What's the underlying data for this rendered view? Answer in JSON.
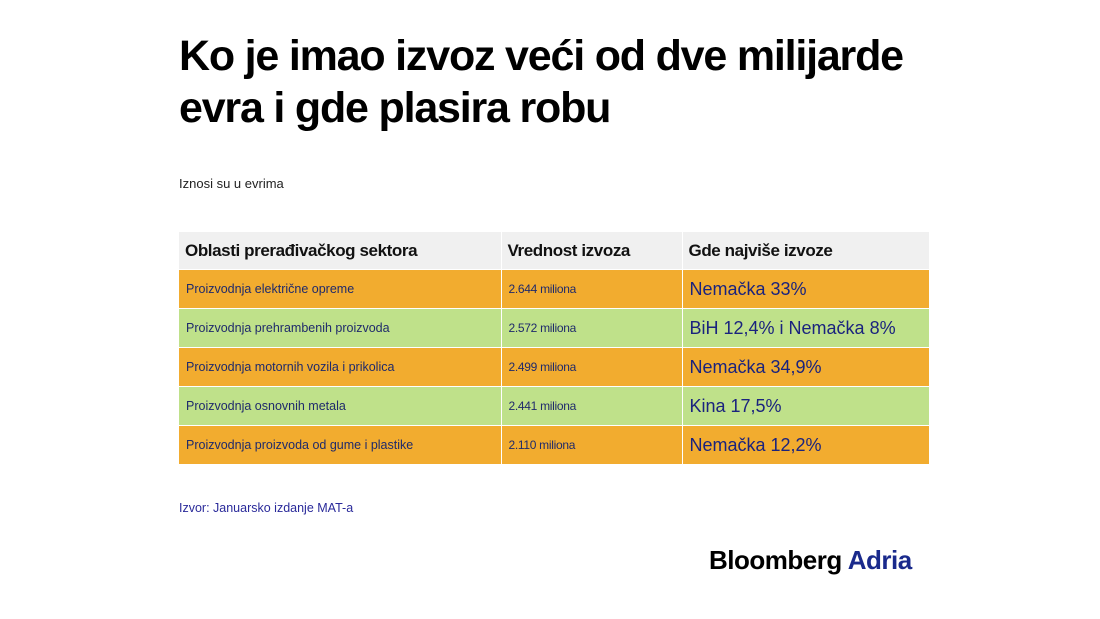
{
  "title": "Ko je imao izvoz veći od dve milijarde evra i gde plasira robu",
  "subtitle": "Iznosi su u evrima",
  "colors": {
    "row_orange": "#f2ac2f",
    "row_green": "#bfe18a",
    "header_bg": "#f0f0f0"
  },
  "chart_data": {
    "type": "table",
    "columns": [
      "Oblasti prerađivačkog sektora",
      "Vrednost izvoza",
      "Gde najviše izvoze"
    ],
    "rows": [
      {
        "sector": "Proizvodnja električne opreme",
        "value": "2.644 miliona",
        "destination": "Nemačka 33%",
        "color": "orange"
      },
      {
        "sector": "Proizvodnja prehrambenih proizvoda",
        "value": "2.572 miliona",
        "destination": "BiH 12,4% i Nemačka 8%",
        "color": "green"
      },
      {
        "sector": "Proizvodnja motornih vozila i prikolica",
        "value": "2.499 miliona",
        "destination": "Nemačka 34,9%",
        "color": "orange"
      },
      {
        "sector": "Proizvodnja osnovnih metala",
        "value": "2.441 miliona",
        "destination": "Kina 17,5%",
        "color": "green"
      },
      {
        "sector": "Proizvodnja proizvoda od gume i plastike",
        "value": "2.110 miliona",
        "destination": "Nemačka 12,2%",
        "color": "orange"
      }
    ]
  },
  "source": "Izvor: Januarsko izdanje MAT-a",
  "brand": {
    "part1": "Bloomberg",
    "part2": "Adria"
  }
}
